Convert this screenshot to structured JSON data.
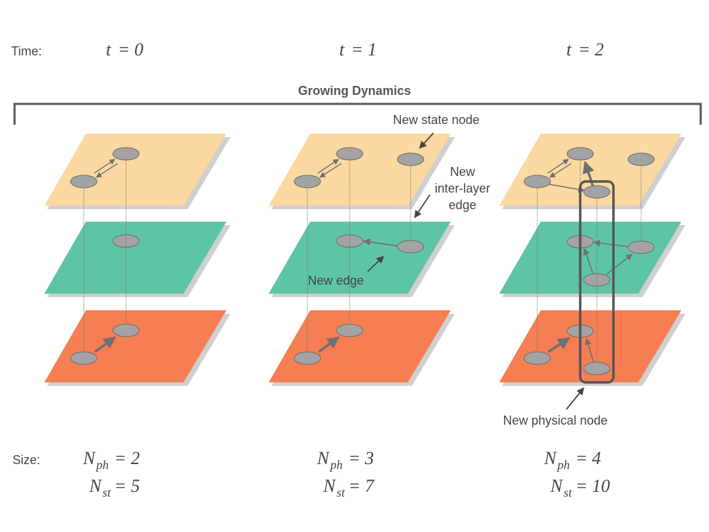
{
  "time_row": {
    "label": "Time:",
    "steps": [
      {
        "var": "t",
        "eq": "= 0"
      },
      {
        "var": "t",
        "eq": "= 1"
      },
      {
        "var": "t",
        "eq": "= 2"
      }
    ]
  },
  "title": "Growing Dynamics",
  "annotations": {
    "new_state_node": "New state node",
    "new_inter_layer_edge_line1": "New",
    "new_inter_layer_edge_line2": "inter-layer",
    "new_inter_layer_edge_line3": "edge",
    "new_edge": "New edge",
    "new_physical_node": "New physical node"
  },
  "size_row": {
    "label": "Size:",
    "columns": [
      {
        "nph_var": "N",
        "nph_sub": "ph",
        "nph_eq": "= 2",
        "nst_var": "N",
        "nst_sub": "st",
        "nst_eq": "= 5"
      },
      {
        "nph_var": "N",
        "nph_sub": "ph",
        "nph_eq": "= 3",
        "nst_var": "N",
        "nst_sub": "st",
        "nst_eq": "= 7"
      },
      {
        "nph_var": "N",
        "nph_sub": "ph",
        "nph_eq": "= 4",
        "nst_var": "N",
        "nst_sub": "st",
        "nst_eq": "= 10"
      }
    ]
  },
  "colors": {
    "top_layer": "#fcd9a0",
    "middle_layer": "#5ec4a8",
    "bottom_layer": "#f57e52",
    "node": "#a3a3a3",
    "node_stroke": "#6a6a6a",
    "edge": "#6f6f6f",
    "highlight_box": "#555555",
    "text": "#444444"
  }
}
